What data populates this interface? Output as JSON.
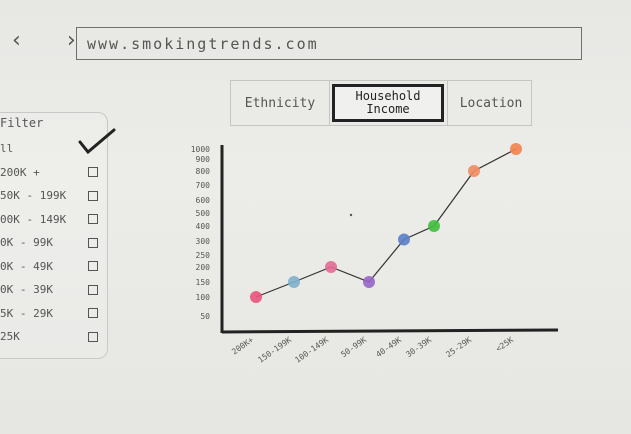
{
  "browser": {
    "nav_glyphs": "‹ ›",
    "url": "www.smokingtrends.com"
  },
  "filter": {
    "title": "Filter",
    "items": [
      {
        "label": "ll",
        "checked": true
      },
      {
        "label": "200K +",
        "checked": false
      },
      {
        "label": "50K - 199K",
        "checked": false
      },
      {
        "label": "00K - 149K",
        "checked": false
      },
      {
        "label": "0K - 99K",
        "checked": false
      },
      {
        "label": "0K - 49K",
        "checked": false
      },
      {
        "label": "0K - 39K",
        "checked": false
      },
      {
        "label": "5K - 29K",
        "checked": false
      },
      {
        "label": "25K",
        "checked": false
      }
    ]
  },
  "tabs": [
    {
      "label": "Ethnicity",
      "active": false
    },
    {
      "label": "Household Income",
      "label_line1": "Household",
      "label_line2": "Income",
      "active": true
    },
    {
      "label": "Location",
      "active": false
    }
  ],
  "chart_data": {
    "type": "line",
    "categories": [
      "200K+",
      "150-199K",
      "100-149K",
      "50-99K",
      "40-49K",
      "30-39K",
      "25-29K",
      "<25K"
    ],
    "y_ticks": [
      "50",
      "100",
      "150",
      "200",
      "250",
      "300",
      "400",
      "500",
      "600",
      "700",
      "800",
      "900",
      "1000"
    ],
    "values": [
      100,
      150,
      200,
      150,
      310,
      400,
      800,
      1000
    ],
    "point_colors": [
      "#e8547a",
      "#7fb0cc",
      "#e46a96",
      "#9766c9",
      "#5a7fc8",
      "#3fbf3c",
      "#f28c62",
      "#f5834d"
    ]
  }
}
